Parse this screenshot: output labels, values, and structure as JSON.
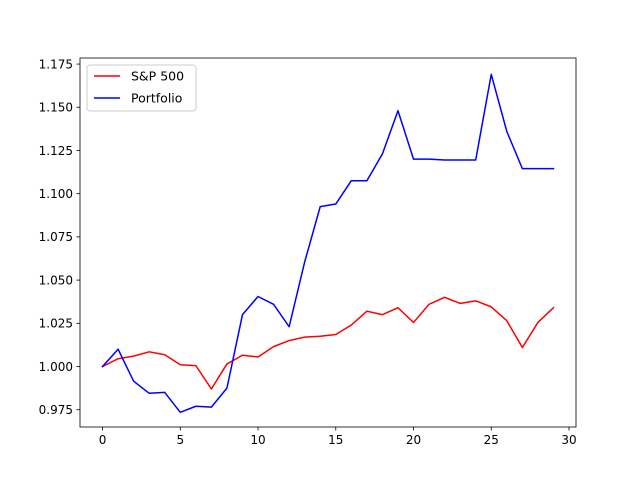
{
  "chart_data": {
    "type": "line",
    "title": "",
    "xlabel": "",
    "ylabel": "",
    "xlim": [
      -1.45,
      30.45
    ],
    "ylim": [
      0.965,
      1.1785
    ],
    "xticks": [
      0,
      5,
      10,
      15,
      20,
      25,
      30
    ],
    "yticks": [
      0.975,
      1.0,
      1.025,
      1.05,
      1.075,
      1.1,
      1.125,
      1.15,
      1.175
    ],
    "ytick_labels": [
      "0.975",
      "1.000",
      "1.025",
      "1.050",
      "1.075",
      "1.100",
      "1.125",
      "1.150",
      "1.175"
    ],
    "grid": false,
    "legend_position": "upper-left",
    "x": [
      0,
      1,
      2,
      3,
      4,
      5,
      6,
      7,
      8,
      9,
      10,
      11,
      12,
      13,
      14,
      15,
      16,
      17,
      18,
      19,
      20,
      21,
      22,
      23,
      24,
      25,
      26,
      27,
      28,
      29
    ],
    "series": [
      {
        "name": "S&P 500",
        "color": "#ff0000",
        "values": [
          1.0,
          1.0045,
          1.006,
          1.0085,
          1.0068,
          1.001,
          1.0005,
          0.987,
          1.0015,
          1.0065,
          1.0055,
          1.0115,
          1.015,
          1.017,
          1.0175,
          1.0185,
          1.024,
          1.032,
          1.03,
          1.034,
          1.0255,
          1.036,
          1.04,
          1.0365,
          1.038,
          1.0345,
          1.0265,
          1.011,
          1.0255,
          1.034
        ]
      },
      {
        "name": "Portfolio",
        "color": "#0000ff",
        "values": [
          1.0,
          1.01,
          0.9915,
          0.9845,
          0.985,
          0.9735,
          0.977,
          0.9765,
          0.9875,
          1.03,
          1.0405,
          1.036,
          1.023,
          1.0605,
          1.0925,
          1.094,
          1.1075,
          1.1075,
          1.123,
          1.148,
          1.12,
          1.12,
          1.1195,
          1.1195,
          1.1195,
          1.169,
          1.136,
          1.1145,
          1.1145,
          1.1145
        ]
      }
    ]
  }
}
